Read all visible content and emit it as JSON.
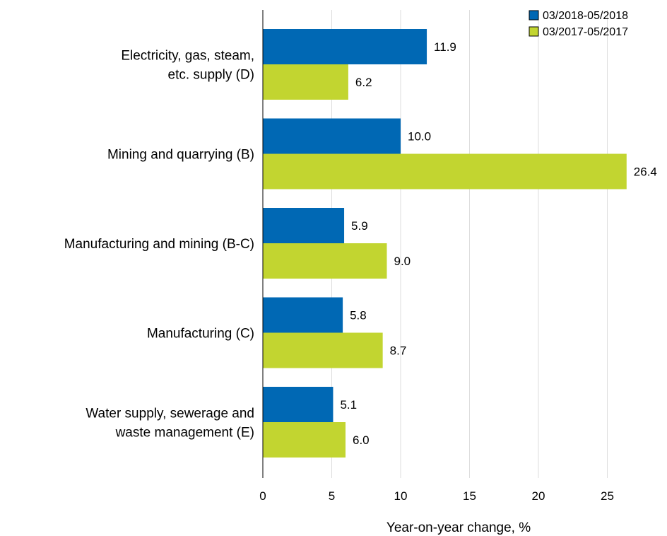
{
  "chart_data": {
    "type": "bar",
    "orientation": "horizontal",
    "categories": [
      [
        "Electricity, gas, steam,",
        "etc. supply (D)"
      ],
      [
        "Mining and quarrying (B)"
      ],
      [
        "Manufacturing and mining (B-C)"
      ],
      [
        "Manufacturing (C)"
      ],
      [
        "Water supply, sewerage and",
        "waste management (E)"
      ]
    ],
    "series": [
      {
        "name": "03/2018-05/2018",
        "color": "#0068b4",
        "values": [
          11.9,
          10.0,
          5.9,
          5.8,
          5.1
        ],
        "labels": [
          "11.9",
          "10.0",
          "5.9",
          "5.8",
          "5.1"
        ]
      },
      {
        "name": "03/2017-05/2017",
        "color": "#c2d530",
        "values": [
          6.2,
          26.4,
          9.0,
          8.7,
          6.0
        ],
        "labels": [
          "6.2",
          "26.4",
          "9.0",
          "8.7",
          "6.0"
        ]
      }
    ],
    "xlabel": "Year-on-year change, %",
    "xlim": [
      0,
      29
    ],
    "xticks": [
      0,
      5,
      10,
      15,
      20,
      25
    ],
    "grid": "vertical",
    "legend": "top-right"
  }
}
